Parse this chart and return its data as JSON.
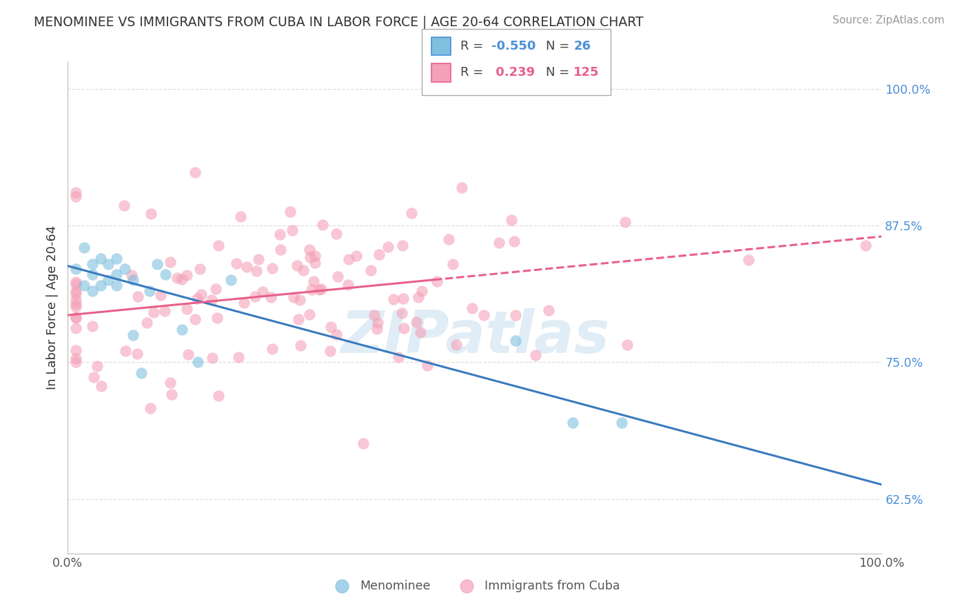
{
  "title": "MENOMINEE VS IMMIGRANTS FROM CUBA IN LABOR FORCE | AGE 20-64 CORRELATION CHART",
  "source": "Source: ZipAtlas.com",
  "ylabel": "In Labor Force | Age 20-64",
  "xlim": [
    0.0,
    1.0
  ],
  "ylim": [
    0.575,
    1.025
  ],
  "yticks": [
    0.625,
    0.75,
    0.875,
    1.0
  ],
  "ytick_labels": [
    "62.5%",
    "75.0%",
    "87.5%",
    "100.0%"
  ],
  "color_blue": "#7fbfdf",
  "color_pink": "#f4a0b8",
  "trendline_blue": "#3a7abf",
  "trendline_pink": "#e8608a",
  "background": "#ffffff",
  "grid_color": "#dddddd",
  "watermark_color": "#c8dff0"
}
